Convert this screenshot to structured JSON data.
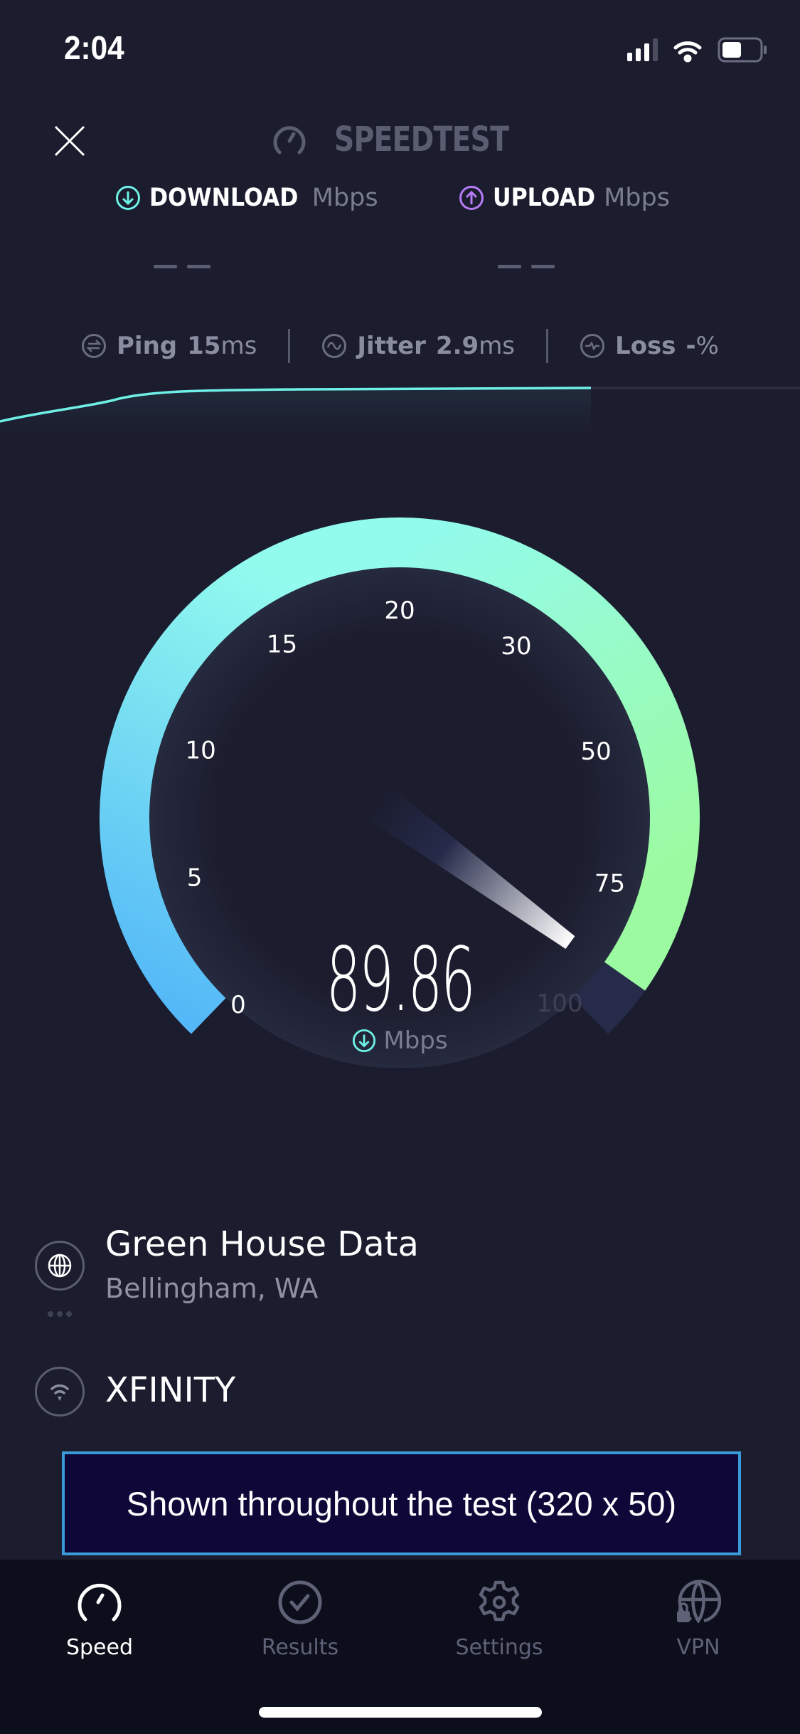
{
  "status_bar": {
    "time": "2:04"
  },
  "header": {
    "logo": "SPEEDTEST",
    "close_icon": "close-icon"
  },
  "download": {
    "label": "DOWNLOAD",
    "unit": "Mbps",
    "value": "– –",
    "color": "#6ff0e6"
  },
  "upload": {
    "label": "UPLOAD",
    "unit": "Mbps",
    "value": "– –",
    "color": "#b67cf5"
  },
  "metrics": {
    "ping": {
      "label": "Ping",
      "value": "15",
      "unit": "ms"
    },
    "jitter": {
      "label": "Jitter",
      "value": "2.9",
      "unit": "ms"
    },
    "loss": {
      "label": "Loss",
      "value": "-",
      "unit": "%"
    }
  },
  "gauge": {
    "ticks": [
      "0",
      "5",
      "10",
      "15",
      "20",
      "30",
      "50",
      "75",
      "100"
    ],
    "value": "89.86",
    "unit": "Mbps",
    "value_fraction": 0.96,
    "colors": {
      "start": "#50b4f8",
      "mid": "#93fbee",
      "end": "#9cfba0",
      "track": "#262b4a"
    }
  },
  "server": {
    "name": "Green House Data",
    "location": "Bellingham, WA"
  },
  "isp": {
    "name": "XFINITY"
  },
  "ad": {
    "text": "Shown throughout the test (320 x 50)"
  },
  "tabs": [
    {
      "label": "Speed",
      "icon": "speedometer-icon",
      "active": true
    },
    {
      "label": "Results",
      "icon": "check-circle-icon",
      "active": false
    },
    {
      "label": "Settings",
      "icon": "gear-icon",
      "active": false
    },
    {
      "label": "VPN",
      "icon": "globe-lock-icon",
      "active": false
    }
  ]
}
